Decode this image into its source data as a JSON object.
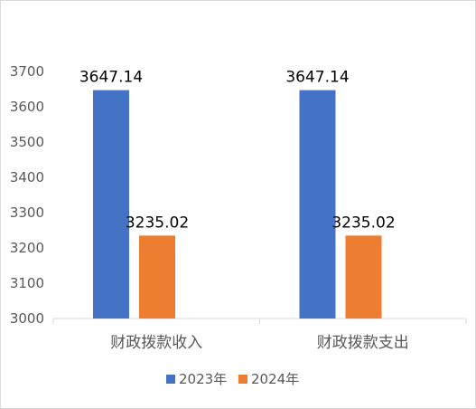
{
  "chart_data": {
    "type": "bar",
    "categories": [
      "财政拨款收入",
      "财政拨款支出"
    ],
    "series": [
      {
        "name": "2023年",
        "color": "#4472C4",
        "values": [
          3647.14,
          3647.14
        ],
        "data_labels": [
          "3647.14",
          "3647.14"
        ]
      },
      {
        "name": "2024年",
        "color": "#ED7D31",
        "values": [
          3235.02,
          3235.02
        ],
        "data_labels": [
          "3235.02",
          "3235.02"
        ]
      }
    ],
    "ylim": [
      3000,
      3700
    ],
    "yticks": [
      3000,
      3100,
      3200,
      3300,
      3400,
      3500,
      3600,
      3700
    ],
    "grid": false,
    "legend": "bottom",
    "axis_color": "#d9d9d9",
    "text_color": "#595959"
  }
}
